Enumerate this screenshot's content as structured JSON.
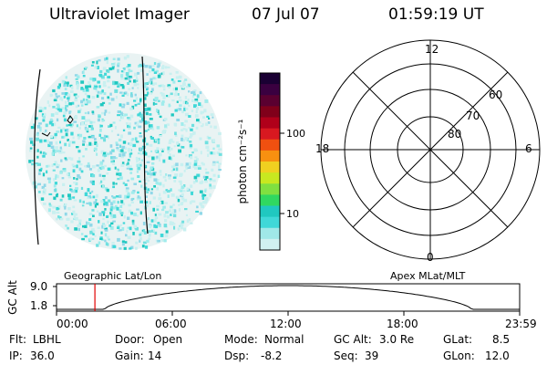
{
  "header": {
    "title": "Ultraviolet Imager",
    "date": "07 Jul 07",
    "time": "01:59:19 UT"
  },
  "colorbar": {
    "label": "photon cm⁻²s⁻¹",
    "ticks": [
      "100",
      "10"
    ],
    "colors": [
      "#1a0033",
      "#3a0040",
      "#5a0030",
      "#80001a",
      "#b0001a",
      "#d81820",
      "#f05010",
      "#f89010",
      "#f0d020",
      "#c8e820",
      "#80e040",
      "#30d860",
      "#20c8c0",
      "#40d8d8",
      "#a0e8e8",
      "#d0f0f0"
    ]
  },
  "polar": {
    "labels": {
      "top": "12",
      "bottom": "0",
      "left": "18",
      "right": "6"
    },
    "lat_labels": [
      "60",
      "70",
      "80"
    ]
  },
  "strip": {
    "ylabel": "GC Alt",
    "ytick_top": "9.0",
    "ytick_bottom": "1.8",
    "title_left": "Geographic Lat/Lon",
    "title_right": "Apex MLat/MLT",
    "xticks": [
      "00:00",
      "06:00",
      "12:00",
      "18:00",
      "23:59"
    ],
    "marker_time_hours": 1.99
  },
  "info": {
    "row1": [
      {
        "label": "Flt:",
        "value": "LBHL"
      },
      {
        "label": "Door:",
        "value": "Open"
      },
      {
        "label": "Mode:",
        "value": "Normal"
      },
      {
        "label": "GC Alt:",
        "value": "3.0 Re"
      },
      {
        "label": "GLat:",
        "value": "8.5"
      }
    ],
    "row2": [
      {
        "label": "IP:",
        "value": "36.0"
      },
      {
        "label": "Gain:",
        "value": "14"
      },
      {
        "label": "Dsp:",
        "value": "-8.2"
      },
      {
        "label": "Seq:",
        "value": "39"
      },
      {
        "label": "GLon:",
        "value": "12.0"
      }
    ]
  }
}
